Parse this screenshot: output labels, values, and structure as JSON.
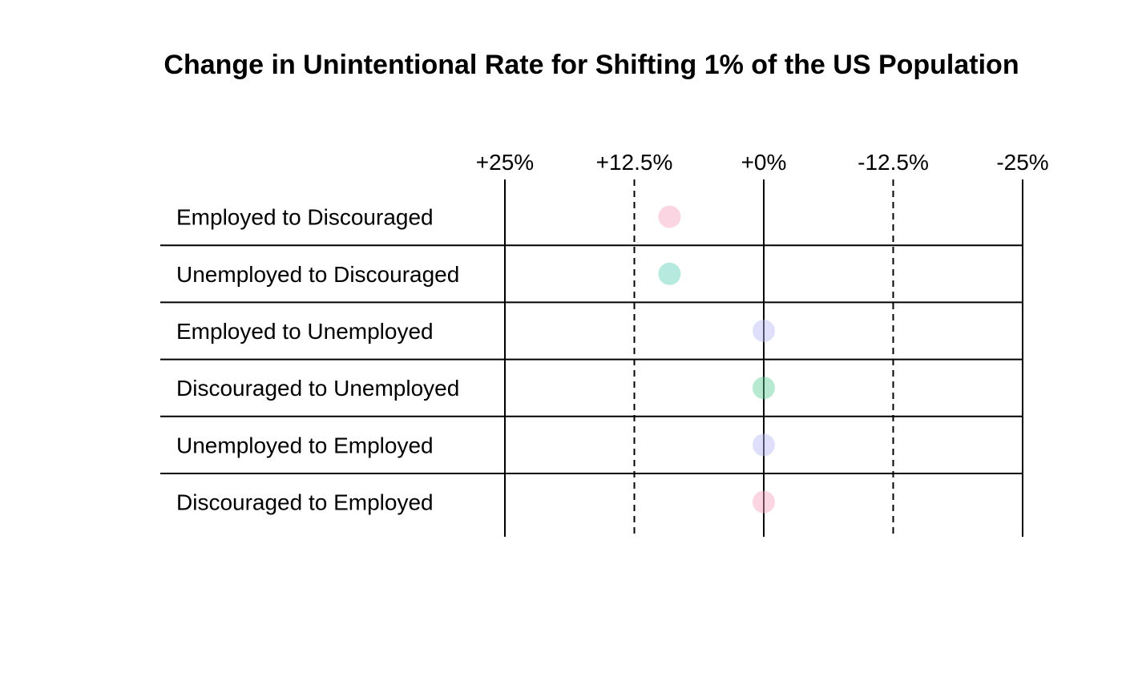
{
  "chart_data": {
    "type": "scatter",
    "title": "Change in Unintentional Rate for Shifting 1% of the US Population",
    "xlabel": "",
    "ylabel": "",
    "x_reversed": true,
    "xlim": [
      25,
      -25
    ],
    "ticks": [
      {
        "value": 25,
        "label": "+25%",
        "style": "solid"
      },
      {
        "value": 12.5,
        "label": "+12.5%",
        "style": "dashed"
      },
      {
        "value": 0,
        "label": "+0%",
        "style": "solid"
      },
      {
        "value": -12.5,
        "label": "-12.5%",
        "style": "dashed"
      },
      {
        "value": -25,
        "label": "-25%",
        "style": "solid"
      }
    ],
    "rows": [
      {
        "label": "Employed to Discouraged",
        "value": 9.1,
        "color": "#f7a1be"
      },
      {
        "label": "Unemployed to Discouraged",
        "value": 9.1,
        "color": "#5fd0b8"
      },
      {
        "label": "Employed to Unemployed",
        "value": 0,
        "color": "#b9b9f7"
      },
      {
        "label": "Discouraged to Unemployed",
        "value": 0,
        "color": "#5fcf98"
      },
      {
        "label": "Unemployed to Employed",
        "value": 0,
        "color": "#b9b9f7"
      },
      {
        "label": "Discouraged to Employed",
        "value": 0,
        "color": "#f7a1be"
      }
    ],
    "point_opacity": 0.45,
    "grid": true,
    "legend": "none"
  }
}
